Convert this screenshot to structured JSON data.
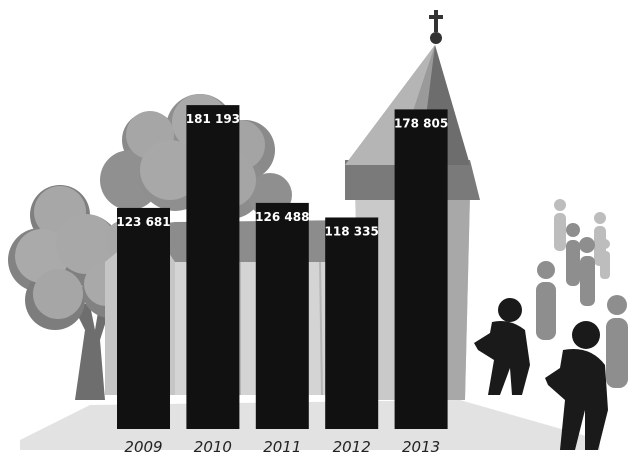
{
  "chart_data": {
    "type": "bar",
    "categories": [
      "2009",
      "2010",
      "2011",
      "2012",
      "2013"
    ],
    "values": [
      123681,
      181193,
      126488,
      118335,
      178805
    ],
    "value_labels": [
      "123 681",
      "181 193",
      "126 488",
      "118 335",
      "178 805"
    ],
    "title": "",
    "xlabel": "",
    "ylabel": "",
    "ylim": [
      0,
      240000
    ],
    "grid": false,
    "legend": "none",
    "colors": {
      "bar": "#111111",
      "label": "#ffffff",
      "category": "#222222"
    }
  },
  "illustration": {
    "icons": [
      "tree-icon",
      "church-icon",
      "cross-icon",
      "people-icon"
    ]
  }
}
